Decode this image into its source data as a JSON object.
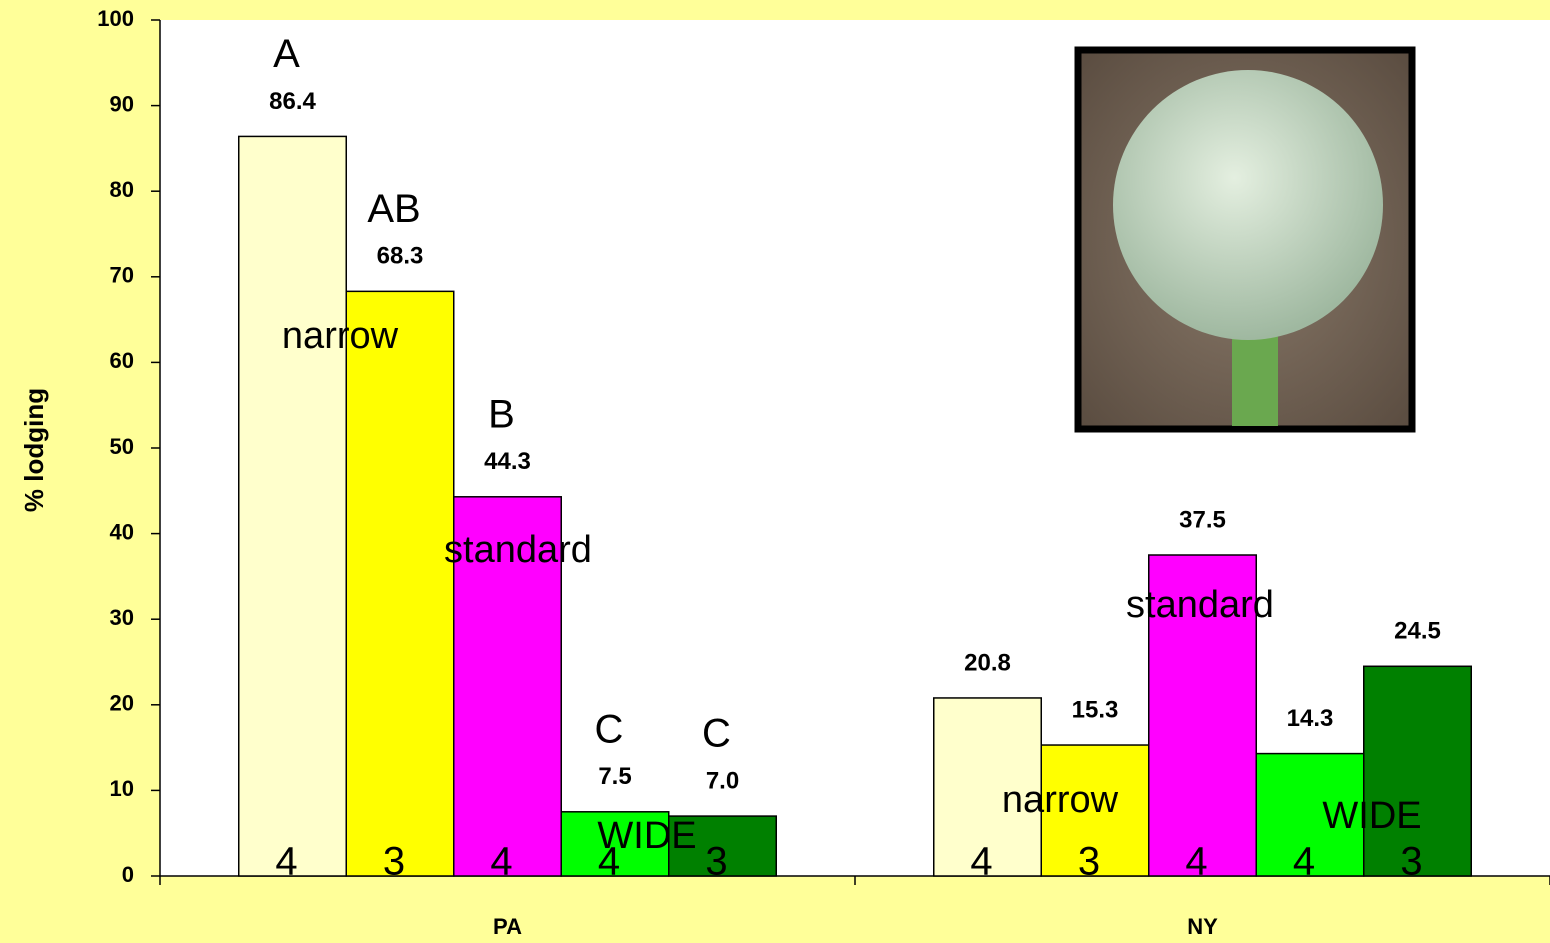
{
  "chart_data": {
    "type": "bar",
    "y_label": "% lodging",
    "categories": [
      "PA",
      "NY"
    ],
    "ylim": [
      0,
      100
    ],
    "yticks": [
      0,
      10,
      20,
      30,
      40,
      50,
      60,
      70,
      80,
      90,
      100
    ],
    "series": [
      {
        "color": "#ffffcc",
        "values": [
          86.4,
          20.8
        ],
        "value_labels": [
          "86.4",
          "20.8"
        ],
        "n": [
          4,
          4
        ]
      },
      {
        "color": "#ffff00",
        "values": [
          68.3,
          15.3
        ],
        "value_labels": [
          "68.3",
          "15.3"
        ],
        "n": [
          3,
          3
        ]
      },
      {
        "color": "#ff00ff",
        "values": [
          44.3,
          37.5
        ],
        "value_labels": [
          "44.3",
          "37.5"
        ],
        "n": [
          4,
          4
        ]
      },
      {
        "color": "#00ff00",
        "values": [
          7.5,
          14.3
        ],
        "value_labels": [
          "7.5",
          "14.3"
        ],
        "n": [
          4,
          4
        ]
      },
      {
        "color": "#008000",
        "values": [
          7,
          24.5
        ],
        "value_labels": [
          "7.0",
          "24.5"
        ],
        "n": [
          3,
          3
        ]
      }
    ],
    "letters": [
      "A",
      "AB",
      "B",
      "C",
      "C"
    ],
    "notes": [
      [
        "narrow",
        "standard",
        "WIDE"
      ],
      [
        "narrow",
        "standard",
        "WIDE"
      ]
    ]
  }
}
